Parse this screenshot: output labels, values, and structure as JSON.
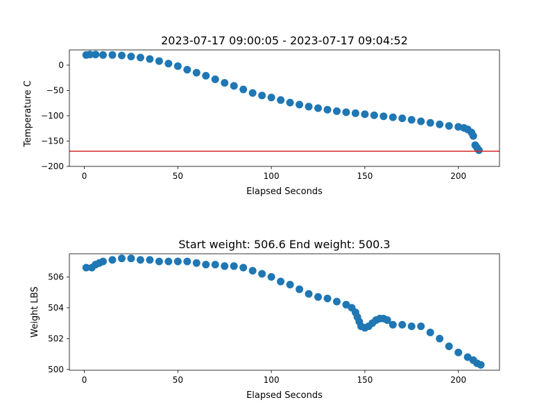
{
  "chart_data": [
    {
      "type": "scatter",
      "title": "2023-07-17 09:00:05 - 2023-07-17 09:04:52",
      "xlabel": "Elapsed Seconds",
      "ylabel": "Temperature C",
      "xlim": [
        -8,
        222
      ],
      "ylim": [
        -200,
        30
      ],
      "xticks": [
        0,
        50,
        100,
        150,
        200
      ],
      "yticks": [
        0,
        -50,
        -100,
        -150,
        -200
      ],
      "xtick_labels": [
        "0",
        "50",
        "100",
        "150",
        "200"
      ],
      "ytick_labels": [
        "0",
        "−50",
        "−100",
        "−150",
        "−200"
      ],
      "hline": {
        "y": -170,
        "color": "#d62728"
      },
      "series": [
        {
          "color": "#1f77b4",
          "x": [
            1,
            3,
            6,
            10,
            15,
            20,
            25,
            30,
            35,
            40,
            45,
            50,
            55,
            60,
            65,
            70,
            75,
            80,
            85,
            90,
            95,
            100,
            105,
            110,
            115,
            120,
            125,
            130,
            135,
            140,
            145,
            150,
            155,
            160,
            165,
            170,
            175,
            180,
            185,
            190,
            195,
            200,
            203,
            205,
            207,
            208,
            209,
            210,
            211
          ],
          "y": [
            20,
            21,
            21,
            20,
            20,
            19,
            17,
            15,
            12,
            8,
            3,
            -2,
            -9,
            -15,
            -21,
            -28,
            -35,
            -41,
            -48,
            -55,
            -60,
            -64,
            -69,
            -74,
            -78,
            -82,
            -85,
            -88,
            -91,
            -93,
            -95,
            -97,
            -99,
            -101,
            -103,
            -105,
            -108,
            -111,
            -114,
            -117,
            -120,
            -122,
            -124,
            -127,
            -133,
            -140,
            -158,
            -163,
            -168
          ]
        }
      ]
    },
    {
      "type": "scatter",
      "title": "Start weight: 506.6 End weight: 500.3",
      "xlabel": "Elapsed Seconds",
      "ylabel": "Weight LBS",
      "xlim": [
        -8,
        222
      ],
      "ylim": [
        499.95,
        507.5
      ],
      "xticks": [
        0,
        50,
        100,
        150,
        200
      ],
      "yticks": [
        500,
        502,
        504,
        506
      ],
      "xtick_labels": [
        "0",
        "50",
        "100",
        "150",
        "200"
      ],
      "ytick_labels": [
        "500",
        "502",
        "504",
        "506"
      ],
      "series": [
        {
          "color": "#1f77b4",
          "x": [
            1,
            4,
            6,
            8,
            10,
            15,
            20,
            25,
            30,
            35,
            40,
            45,
            50,
            55,
            60,
            65,
            70,
            75,
            80,
            85,
            90,
            95,
            100,
            105,
            110,
            115,
            120,
            125,
            130,
            135,
            140,
            143,
            145,
            146,
            147,
            148,
            150,
            152,
            154,
            156,
            158,
            160,
            162,
            165,
            170,
            175,
            180,
            185,
            190,
            195,
            200,
            205,
            208,
            210,
            212
          ],
          "y": [
            506.6,
            506.6,
            506.8,
            506.9,
            507.0,
            507.1,
            507.2,
            507.2,
            507.1,
            507.1,
            507.0,
            507.0,
            507.0,
            507.0,
            506.9,
            506.8,
            506.8,
            506.7,
            506.7,
            506.6,
            506.4,
            506.2,
            506.0,
            505.7,
            505.5,
            505.2,
            504.9,
            504.7,
            504.6,
            504.4,
            504.2,
            504.0,
            503.7,
            503.4,
            503.1,
            502.8,
            502.7,
            502.8,
            503.0,
            503.2,
            503.3,
            503.3,
            503.2,
            502.9,
            502.9,
            502.8,
            502.8,
            502.4,
            502.0,
            501.5,
            501.1,
            500.8,
            500.6,
            500.4,
            500.3
          ]
        }
      ]
    }
  ]
}
